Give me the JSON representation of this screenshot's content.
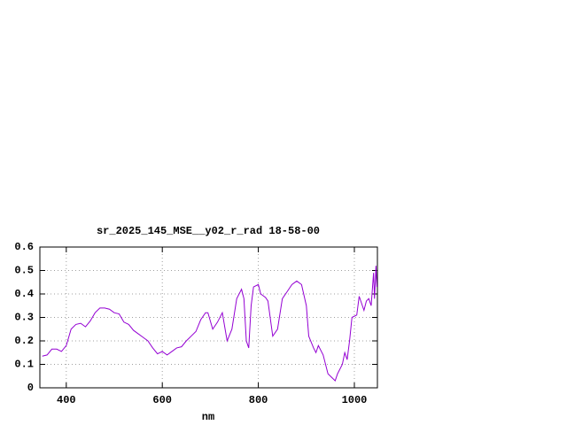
{
  "chart_data": {
    "type": "line",
    "title": "sr_2025_145_MSE__y02_r_rad 18-58-00",
    "x_label": "nm",
    "x": [
      350,
      360,
      370,
      380,
      390,
      400,
      410,
      420,
      430,
      440,
      450,
      460,
      470,
      480,
      490,
      500,
      510,
      520,
      530,
      540,
      550,
      560,
      570,
      580,
      590,
      600,
      610,
      620,
      630,
      640,
      650,
      660,
      670,
      680,
      690,
      695,
      705,
      715,
      725,
      735,
      745,
      755,
      765,
      770,
      775,
      780,
      785,
      790,
      800,
      805,
      815,
      820,
      830,
      840,
      850,
      860,
      870,
      880,
      890,
      900,
      905,
      915,
      920,
      925,
      935,
      945,
      950,
      955,
      960,
      965,
      975,
      980,
      985,
      990,
      995,
      1005,
      1010,
      1020,
      1025,
      1030,
      1035,
      1040,
      1042,
      1045,
      1047
    ],
    "series": [
      {
        "color": "#9400d3",
        "values": [
          0.135,
          0.14,
          0.165,
          0.165,
          0.155,
          0.18,
          0.25,
          0.27,
          0.275,
          0.26,
          0.285,
          0.32,
          0.34,
          0.34,
          0.335,
          0.32,
          0.315,
          0.28,
          0.27,
          0.245,
          0.23,
          0.215,
          0.2,
          0.17,
          0.145,
          0.155,
          0.14,
          0.155,
          0.17,
          0.175,
          0.2,
          0.22,
          0.24,
          0.29,
          0.32,
          0.32,
          0.25,
          0.28,
          0.32,
          0.2,
          0.25,
          0.38,
          0.42,
          0.38,
          0.2,
          0.17,
          0.35,
          0.43,
          0.44,
          0.4,
          0.385,
          0.37,
          0.22,
          0.25,
          0.38,
          0.41,
          0.44,
          0.455,
          0.44,
          0.35,
          0.22,
          0.17,
          0.15,
          0.18,
          0.14,
          0.06,
          0.05,
          0.04,
          0.03,
          0.06,
          0.1,
          0.15,
          0.12,
          0.2,
          0.3,
          0.31,
          0.39,
          0.33,
          0.37,
          0.38,
          0.35,
          0.49,
          0.38,
          0.52,
          0.43
        ]
      }
    ],
    "xlim": [
      345,
      1048
    ],
    "xticks": [
      400,
      600,
      800,
      1000
    ],
    "ylim": [
      0,
      0.6
    ],
    "yticks": [
      0,
      0.1,
      0.2,
      0.3,
      0.4,
      0.5,
      0.6
    ],
    "grid": true
  }
}
